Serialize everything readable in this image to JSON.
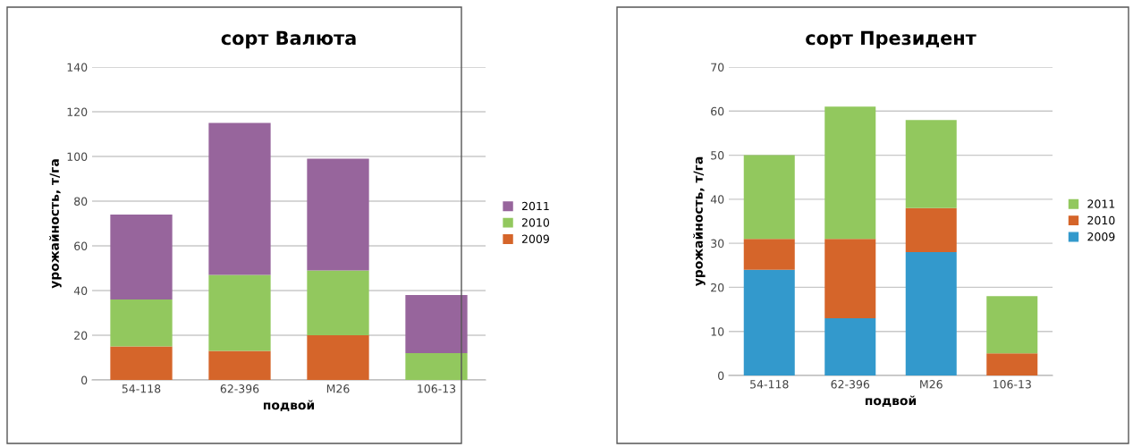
{
  "chart_data": [
    {
      "type": "bar",
      "title": "сорт Валюта",
      "xlabel": "подвой",
      "ylabel": "урожайность, т/га",
      "categories": [
        "54-118",
        "62-396",
        "M26",
        "106-13"
      ],
      "stacked": true,
      "ylim": [
        0,
        140
      ],
      "yticks": [
        0,
        20,
        40,
        60,
        80,
        100,
        120,
        140
      ],
      "grid": "y",
      "legend": "right",
      "series": [
        {
          "name": "2009",
          "color": "#d5652a",
          "values": [
            15,
            13,
            20,
            0
          ]
        },
        {
          "name": "2010",
          "color": "#92c85e",
          "values": [
            21,
            34,
            29,
            12
          ]
        },
        {
          "name": "2011",
          "color": "#97659c",
          "values": [
            38,
            68,
            50,
            26
          ]
        }
      ]
    },
    {
      "type": "bar",
      "title": "сорт Президент",
      "xlabel": "подвой",
      "ylabel": "урожайность, т/га",
      "categories": [
        "54-118",
        "62-396",
        "M26",
        "106-13"
      ],
      "stacked": true,
      "ylim": [
        0,
        70
      ],
      "yticks": [
        0,
        10,
        20,
        30,
        40,
        50,
        60,
        70
      ],
      "grid": "y",
      "legend": "right",
      "series": [
        {
          "name": "2009",
          "color": "#3399cc",
          "values": [
            24,
            13,
            28,
            0
          ]
        },
        {
          "name": "2010",
          "color": "#d5652a",
          "values": [
            7,
            18,
            10,
            5
          ]
        },
        {
          "name": "2011",
          "color": "#92c85e",
          "values": [
            19,
            30,
            20,
            13
          ]
        }
      ]
    }
  ]
}
